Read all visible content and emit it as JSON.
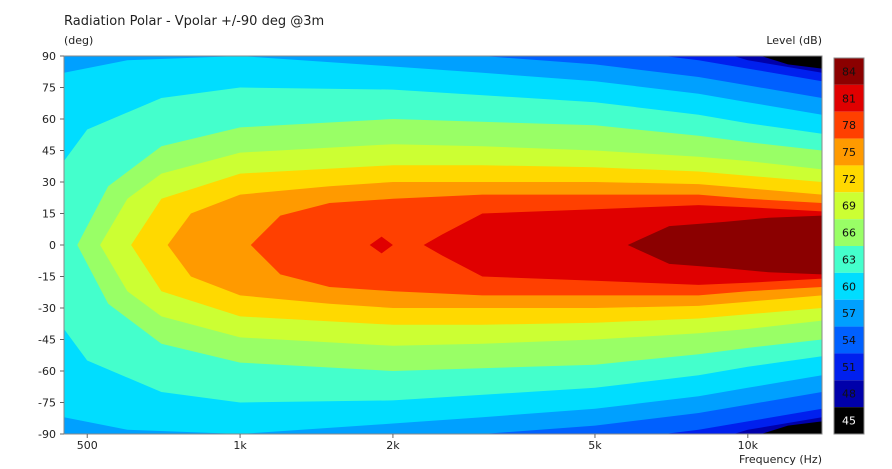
{
  "chart_data": {
    "type": "heatmap",
    "title": "Radiation Polar - Vpolar +/-90 deg @3m",
    "ylabel": "(deg)",
    "xlabel": "Frequency  (Hz)",
    "colorbar_label": "Level  (dB)",
    "x_scale": "log",
    "xlim": [
      450,
      14000
    ],
    "ylim": [
      -90,
      90
    ],
    "x_ticks": [
      {
        "value": 500,
        "label": "500"
      },
      {
        "value": 1000,
        "label": "1k"
      },
      {
        "value": 2000,
        "label": "2k"
      },
      {
        "value": 5000,
        "label": "5k"
      },
      {
        "value": 10000,
        "label": "10k"
      }
    ],
    "y_ticks": [
      90,
      75,
      60,
      45,
      30,
      15,
      0,
      -15,
      -30,
      -45,
      -60,
      -75,
      -90
    ],
    "levels": [
      84,
      81,
      78,
      75,
      72,
      69,
      66,
      63,
      60,
      57,
      54,
      51,
      48,
      45
    ],
    "level_colors": [
      "#8b0000",
      "#e00000",
      "#ff4000",
      "#ff9a00",
      "#ffd900",
      "#ccff33",
      "#99ff66",
      "#44ffcc",
      "#00ddff",
      "#00a0ff",
      "#0060ff",
      "#0020ee",
      "#0000aa",
      "#000000"
    ],
    "contours_half_width_deg": [
      {
        "level": 84,
        "freq": [
          5800,
          7000,
          9000,
          11000,
          14000
        ],
        "width": [
          0,
          9,
          11,
          13,
          14
        ]
      },
      {
        "level": 81,
        "freq": [
          1800,
          1900,
          2000,
          2300,
          2500,
          3000,
          5000,
          8000,
          10000,
          14000
        ],
        "width": [
          0,
          4,
          0,
          0,
          5,
          15,
          17,
          19,
          18,
          16
        ]
      },
      {
        "level": 78,
        "freq": [
          1050,
          1200,
          1500,
          2000,
          3000,
          5000,
          8000,
          10000,
          14000
        ],
        "width": [
          0,
          14,
          20,
          22,
          24,
          24,
          24,
          22,
          20
        ]
      },
      {
        "level": 75,
        "freq": [
          720,
          800,
          1000,
          1500,
          2000,
          3000,
          5000,
          8000,
          10000,
          14000
        ],
        "width": [
          0,
          15,
          24,
          28,
          30,
          30,
          30,
          29,
          27,
          24
        ]
      },
      {
        "level": 72,
        "freq": [
          610,
          700,
          1000,
          2000,
          3000,
          5000,
          8000,
          10000,
          14000
        ],
        "width": [
          0,
          22,
          34,
          38,
          38,
          37,
          35,
          33,
          30
        ]
      },
      {
        "level": 69,
        "freq": [
          530,
          600,
          700,
          1000,
          2000,
          3000,
          5000,
          8000,
          10000,
          14000
        ],
        "width": [
          0,
          22,
          34,
          44,
          48,
          47,
          45,
          42,
          40,
          36
        ]
      },
      {
        "level": 66,
        "freq": [
          478,
          550,
          700,
          1000,
          2000,
          5000,
          8000,
          10000,
          14000
        ],
        "width": [
          0,
          28,
          47,
          56,
          60,
          57,
          52,
          49,
          45
        ]
      },
      {
        "level": 63,
        "freq": [
          450,
          500,
          700,
          1000,
          2000,
          5000,
          8000,
          10000,
          14000
        ],
        "width": [
          40,
          55,
          70,
          75,
          74,
          68,
          62,
          58,
          53
        ]
      },
      {
        "level": 60,
        "freq": [
          450,
          600,
          1000,
          2000,
          3000,
          5000,
          8000,
          10000,
          14000
        ],
        "width": [
          82,
          88,
          90,
          85,
          82,
          78,
          72,
          68,
          62
        ]
      },
      {
        "level": 57,
        "freq": [
          450,
          600,
          1000,
          2000,
          3000,
          5000,
          8000,
          10000,
          14000
        ],
        "width": [
          92,
          98,
          100,
          95,
          90,
          86,
          80,
          76,
          70
        ]
      },
      {
        "level": 54,
        "freq": [
          450,
          2000,
          5000,
          8000,
          10000,
          14000
        ],
        "width": [
          100,
          100,
          94,
          88,
          84,
          78
        ]
      },
      {
        "level": 51,
        "freq": [
          450,
          5000,
          8000,
          10000,
          14000
        ],
        "width": [
          100,
          100,
          95,
          88,
          82
        ]
      },
      {
        "level": 48,
        "freq": [
          450,
          8000,
          10000,
          12000,
          14000
        ],
        "width": [
          100,
          100,
          92,
          86,
          84
        ]
      }
    ],
    "grid": false,
    "legend": "right"
  }
}
